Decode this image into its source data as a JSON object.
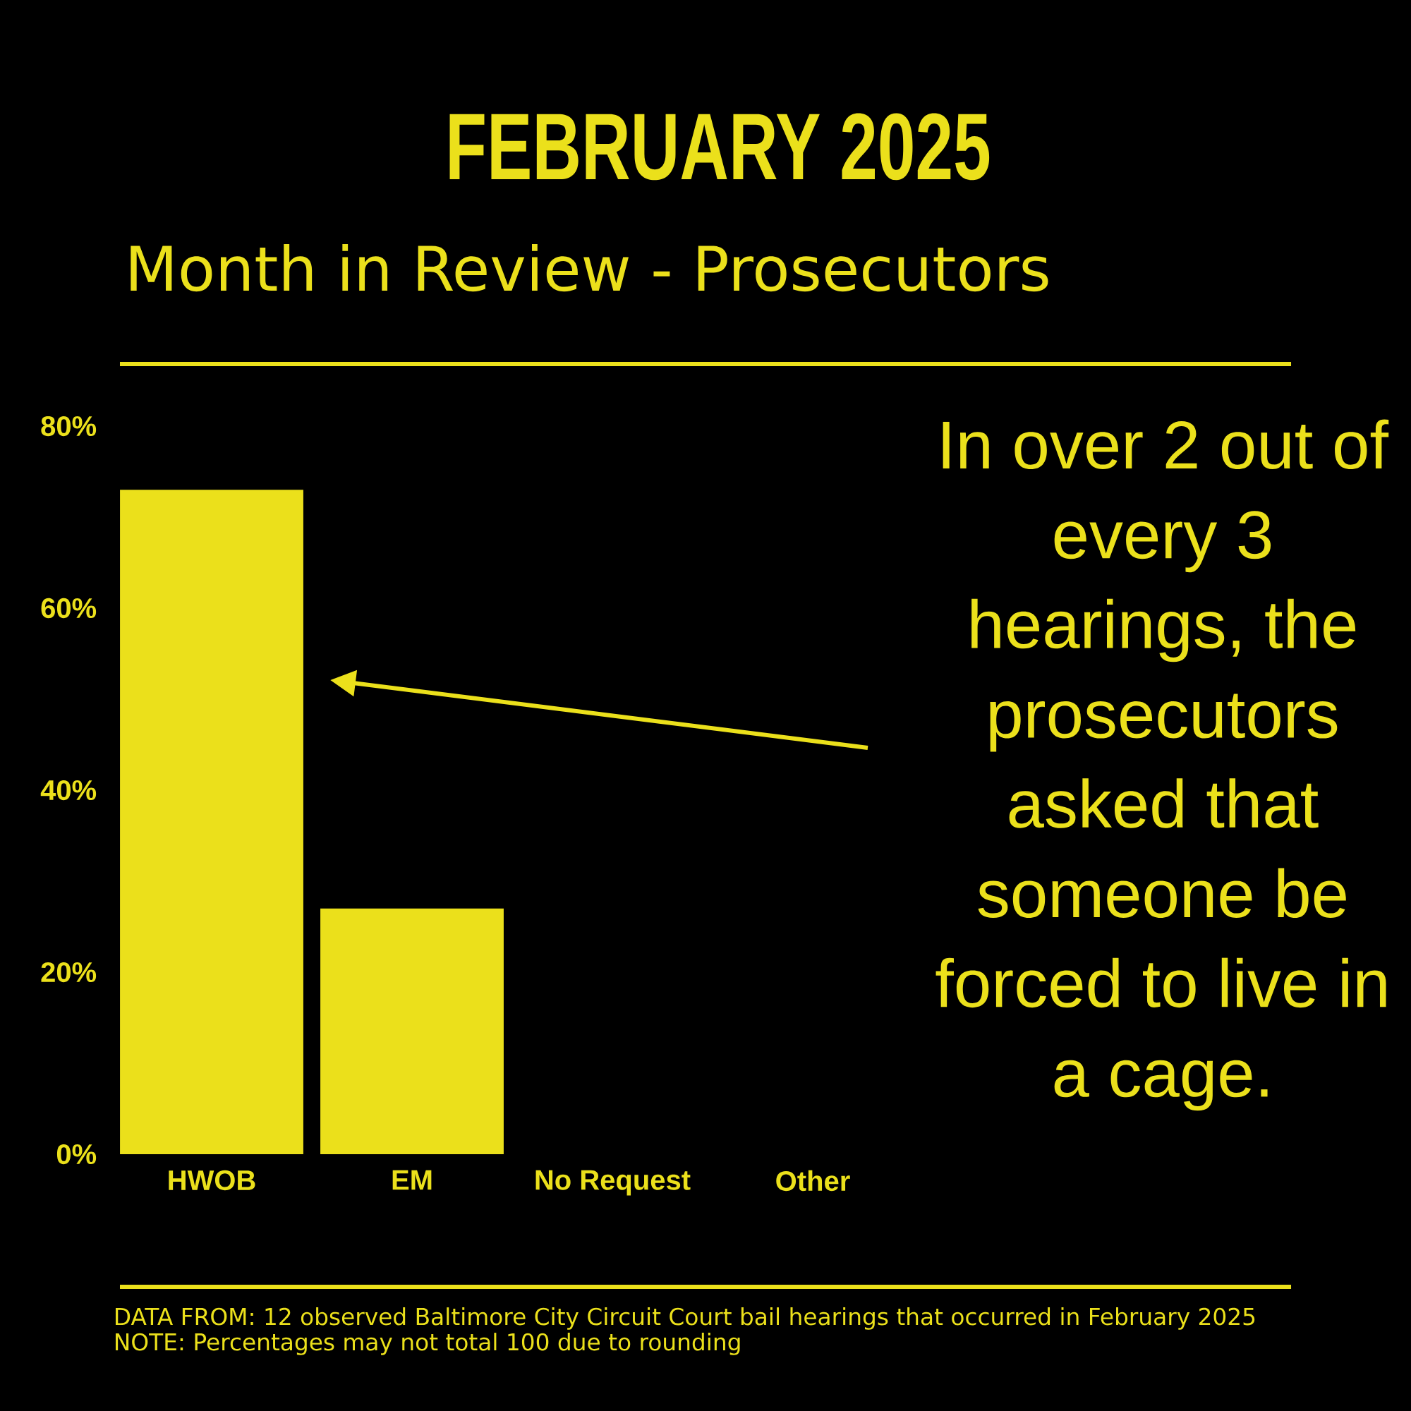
{
  "chart_data": {
    "type": "bar",
    "title": "FEBRUARY 2025",
    "subtitle": "Month in Review - Prosecutors",
    "categories": [
      "HWOB",
      "EM",
      "No Request",
      "Other"
    ],
    "values": [
      73,
      27,
      0,
      0
    ],
    "color": "#ebe01b",
    "ylim": [
      0,
      80
    ],
    "yticks": [
      {
        "value": 0,
        "label": "0%"
      },
      {
        "value": 20,
        "label": "20%"
      },
      {
        "value": 40,
        "label": "40%"
      },
      {
        "value": 60,
        "label": "60%"
      },
      {
        "value": 80,
        "label": "80%"
      }
    ],
    "annotations": [
      "In over 2 out of every 3 hearings, the prosecutors asked that someone be forced to live in a cage.",
      "DATA FROM: 12 observed Baltimore City Circuit Court bail hearings that occurred in February 2025",
      "NOTE: Percentages may not total 100 due to rounding"
    ]
  }
}
